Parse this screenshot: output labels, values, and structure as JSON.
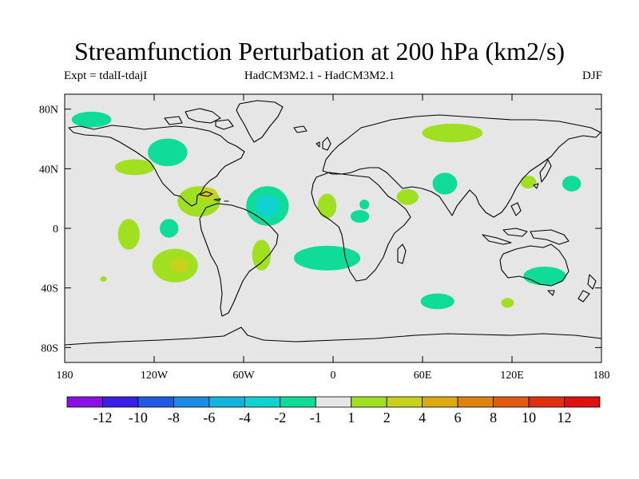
{
  "header": {
    "title": "Streamfunction Perturbation at 200 hPa (km2/s)",
    "left": "Expt = tdalI-tdajI",
    "center": "HadCM3M2.1 - HadCM3M2.1",
    "right": "DJF"
  },
  "chart_data": {
    "type": "heatmap",
    "title": "Streamfunction Perturbation at 200 hPa (km2/s)",
    "projection": "cylindrical equidistant",
    "xlim": [
      -180,
      180
    ],
    "ylim": [
      -90,
      90
    ],
    "x_ticks": [
      {
        "value": -180,
        "label": "180"
      },
      {
        "value": -120,
        "label": "120W"
      },
      {
        "value": -60,
        "label": "60W"
      },
      {
        "value": 0,
        "label": "0"
      },
      {
        "value": 60,
        "label": "60E"
      },
      {
        "value": 120,
        "label": "120E"
      },
      {
        "value": 180,
        "label": "180"
      }
    ],
    "y_ticks": [
      {
        "value": 80,
        "label": "80N"
      },
      {
        "value": 40,
        "label": "40N"
      },
      {
        "value": 0,
        "label": "0"
      },
      {
        "value": -40,
        "label": "40S"
      },
      {
        "value": -80,
        "label": "80S"
      }
    ],
    "colorbar": {
      "levels": [
        -12,
        -10,
        -8,
        -6,
        -4,
        -2,
        -1,
        1,
        2,
        4,
        6,
        8,
        10,
        12
      ],
      "labels": [
        "-12",
        "-10",
        "-8",
        "-6",
        "-4",
        "-2",
        "-1",
        "1",
        "2",
        "4",
        "6",
        "8",
        "10",
        "12"
      ],
      "colors": [
        "#8a10e6",
        "#3a1ee6",
        "#1e5ae6",
        "#1a8ce6",
        "#12b4e0",
        "#10d2d0",
        "#10dc9a",
        "#e6e6e6",
        "#a0e020",
        "#c8d21a",
        "#dcaa10",
        "#e08210",
        "#e05a10",
        "#e03010",
        "#e01010"
      ]
    },
    "anomalies": [
      {
        "lon": -162,
        "lat": 73,
        "rlon": 13,
        "rlat": 5,
        "value": -1.5
      },
      {
        "lon": -111,
        "lat": 51,
        "rlon": 13,
        "rlat": 9,
        "value": -1.5
      },
      {
        "lon": -133,
        "lat": 41,
        "rlon": 13,
        "rlat": 5,
        "value": 1.5
      },
      {
        "lon": -90,
        "lat": 18,
        "rlon": 14,
        "rlat": 10,
        "value": 1.5
      },
      {
        "lon": -84,
        "lat": 23,
        "rlon": 6,
        "rlat": 4,
        "value": 3
      },
      {
        "lon": -44,
        "lat": 15,
        "rlon": 14,
        "rlat": 13,
        "value": -1.5
      },
      {
        "lon": -44,
        "lat": 15,
        "rlon": 8,
        "rlat": 7,
        "value": -3
      },
      {
        "lon": -4,
        "lat": 15,
        "rlon": 6,
        "rlat": 8,
        "value": 1.5
      },
      {
        "lon": -137,
        "lat": -4,
        "rlon": 7,
        "rlat": 10,
        "value": 1.5
      },
      {
        "lon": -110,
        "lat": 0,
        "rlon": 6,
        "rlat": 6,
        "value": -1.5
      },
      {
        "lon": -106,
        "lat": -25,
        "rlon": 15,
        "rlat": 11,
        "value": 1.5
      },
      {
        "lon": -103,
        "lat": -25,
        "rlon": 6,
        "rlat": 5,
        "value": 3
      },
      {
        "lon": -154,
        "lat": -34,
        "rlon": 2,
        "rlat": 1.5,
        "value": 1.5
      },
      {
        "lon": -48,
        "lat": -18,
        "rlon": 6,
        "rlat": 10,
        "value": 1.5
      },
      {
        "lon": -4,
        "lat": -20,
        "rlon": 22,
        "rlat": 8,
        "value": -1.5
      },
      {
        "lon": 18,
        "lat": 8,
        "rlon": 6,
        "rlat": 4,
        "value": -1.5
      },
      {
        "lon": 21,
        "lat": 16,
        "rlon": 3,
        "rlat": 3,
        "value": -1.5
      },
      {
        "lon": 50,
        "lat": 21,
        "rlon": 7,
        "rlat": 5,
        "value": 1.5
      },
      {
        "lon": 80,
        "lat": 64,
        "rlon": 20,
        "rlat": 6,
        "value": 1.5
      },
      {
        "lon": 75,
        "lat": 30,
        "rlon": 8,
        "rlat": 7,
        "value": -1.5
      },
      {
        "lon": 131,
        "lat": 31,
        "rlon": 5,
        "rlat": 4,
        "value": 1.5
      },
      {
        "lon": 160,
        "lat": 30,
        "rlon": 6,
        "rlat": 5,
        "value": -1.5
      },
      {
        "lon": 70,
        "lat": -49,
        "rlon": 11,
        "rlat": 5,
        "value": -1.5
      },
      {
        "lon": 142,
        "lat": -32,
        "rlon": 14,
        "rlat": 6,
        "value": -1.5
      },
      {
        "lon": 117,
        "lat": -50,
        "rlon": 4,
        "rlat": 3,
        "value": 1.5
      }
    ]
  }
}
